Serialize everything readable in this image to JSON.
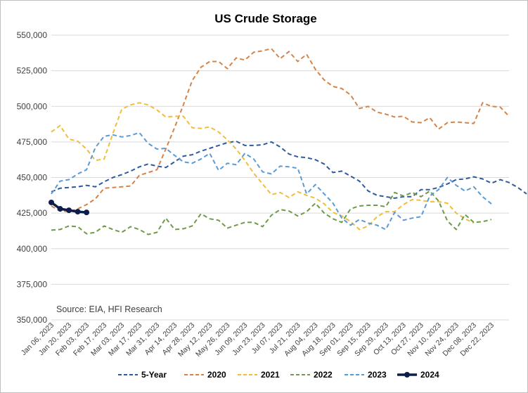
{
  "chart_data": {
    "type": "line",
    "title": "US Crude Storage",
    "source_note": "Source: EIA, HFI Research",
    "ylim": [
      350000,
      550000
    ],
    "y_ticks": [
      "350,000",
      "375,000",
      "400,000",
      "425,000",
      "450,000",
      "475,000",
      "500,000",
      "525,000",
      "550,000"
    ],
    "y_tick_values": [
      350000,
      375000,
      400000,
      425000,
      450000,
      475000,
      500000,
      525000,
      550000
    ],
    "x_tick_labels": [
      "Jan 06, 2023",
      "Jan 20, 2023",
      "Feb 03, 2023",
      "Feb 17, 2023",
      "Mar 03, 2023",
      "Mar 17, 2023",
      "Mar 31, 2023",
      "Apr 14, 2023",
      "Apr 28, 2023",
      "May 12, 2023",
      "May 26, 2023",
      "Jun 09, 2023",
      "Jun 23, 2023",
      "Jul 07, 2023",
      "Jul 21, 2023",
      "Aug 04, 2023",
      "Aug 18, 2023",
      "Sep 01, 2023",
      "Sep 15, 2023",
      "Sep 29, 2023",
      "Oct 13, 2023",
      "Oct 27, 2023",
      "Nov 10, 2023",
      "Nov 24, 2023",
      "Dec 08, 2023",
      "Dec 22, 2023"
    ],
    "n_weeks": 52,
    "series": [
      {
        "name": "5-Year",
        "color": "#2e5a9e",
        "dash": "6,4",
        "width": 2,
        "values": [
          440000,
          442500,
          443000,
          443500,
          444500,
          443500,
          447000,
          450000,
          452000,
          454500,
          457500,
          459500,
          458000,
          457000,
          461000,
          465000,
          466000,
          468500,
          470500,
          472500,
          474500,
          475500,
          472500,
          472500,
          473000,
          475000,
          471500,
          466500,
          464500,
          464000,
          462500,
          459500,
          453500,
          454500,
          451000,
          447500,
          440500,
          437500,
          436500,
          435500,
          436500,
          436500,
          441500,
          441500,
          443000,
          445500,
          448500,
          449000,
          450500,
          449000,
          446000,
          448500,
          446500,
          443000,
          438500
        ]
      },
      {
        "name": "2020",
        "color": "#d4844a",
        "dash": "6,4",
        "width": 2,
        "values": [
          430000,
          426500,
          426000,
          428000,
          431000,
          435000,
          442500,
          443000,
          443500,
          444000,
          451500,
          453500,
          455500,
          470000,
          485000,
          501000,
          518000,
          527500,
          531500,
          531500,
          526500,
          534000,
          532500,
          538000,
          539000,
          540500,
          533500,
          538500,
          531500,
          536500,
          526000,
          518500,
          514000,
          512500,
          508000,
          498500,
          500000,
          496000,
          494500,
          492500,
          493000,
          489000,
          488500,
          492000,
          484000,
          488500,
          489000,
          488500,
          488000,
          502500,
          500000,
          499500,
          493000
        ]
      },
      {
        "name": "2021",
        "color": "#f0be3c",
        "dash": "6,4",
        "width": 2,
        "values": [
          482000,
          486500,
          477000,
          475500,
          470000,
          462000,
          463000,
          481000,
          498000,
          501000,
          502500,
          501000,
          497500,
          492500,
          493000,
          493000,
          485000,
          484500,
          485500,
          482000,
          476500,
          470000,
          462000,
          453000,
          445500,
          438000,
          439500,
          436000,
          440000,
          437500,
          435500,
          431500,
          425500,
          423000,
          419000,
          413500,
          416000,
          422500,
          426000,
          426000,
          431000,
          434500,
          434000,
          433000,
          433000,
          432000,
          425000,
          421000,
          418000
        ]
      },
      {
        "name": "2022",
        "color": "#6e9a4a",
        "dash": "6,4",
        "width": 2,
        "values": [
          413000,
          413500,
          416000,
          415500,
          410500,
          411500,
          416000,
          413500,
          411500,
          415500,
          413500,
          410000,
          411500,
          421500,
          413500,
          414000,
          416000,
          424500,
          421000,
          420000,
          414500,
          416500,
          418500,
          418500,
          415500,
          423500,
          427500,
          426500,
          423000,
          426000,
          432000,
          425000,
          421000,
          418500,
          428000,
          430000,
          430500,
          430500,
          429500,
          439500,
          437000,
          439500,
          436500,
          440500,
          433500,
          419500,
          413500,
          424000,
          418500,
          419000,
          420500
        ]
      },
      {
        "name": "2023",
        "color": "#5b9bd5",
        "dash": "6,4",
        "width": 2,
        "values": [
          438500,
          447500,
          448500,
          452500,
          455500,
          471000,
          479000,
          480000,
          478500,
          479500,
          481500,
          474000,
          470000,
          470500,
          465500,
          461000,
          460000,
          463000,
          467000,
          455000,
          460000,
          459000,
          467000,
          463000,
          454000,
          452500,
          458000,
          457500,
          456500,
          438500,
          445000,
          438500,
          432000,
          421500,
          416500,
          420500,
          418000,
          416500,
          413500,
          425500,
          420000,
          421500,
          422500,
          437000,
          441500,
          450000,
          444500,
          440500,
          443500,
          436500,
          431500
        ]
      },
      {
        "name": "2024",
        "color": "#0e1e4c",
        "dash": "",
        "width": 3.5,
        "marker": true,
        "values": [
          432500,
          428000,
          427000,
          426000,
          425500
        ]
      }
    ]
  }
}
